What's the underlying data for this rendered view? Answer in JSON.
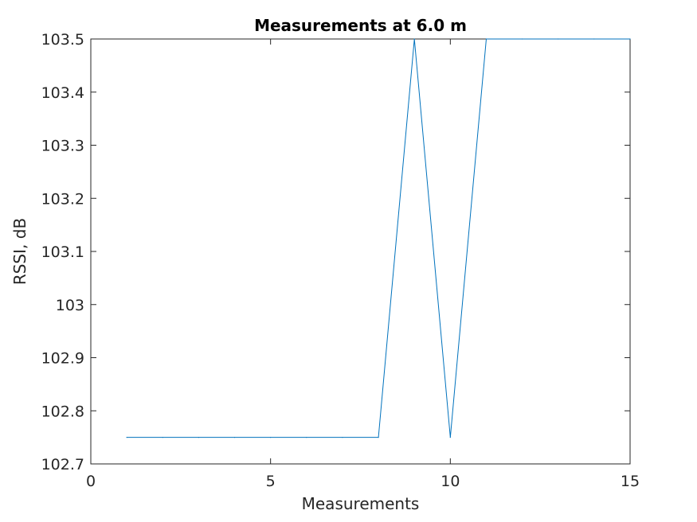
{
  "chart_data": {
    "type": "line",
    "title": "Measurements at 6.0 m",
    "xlabel": "Measurements",
    "ylabel": "RSSI, dB",
    "xlim": [
      0,
      15
    ],
    "ylim": [
      102.7,
      103.5
    ],
    "xticks": [
      "0",
      "5",
      "10",
      "15"
    ],
    "yticks": [
      "102.7",
      "102.8",
      "102.9",
      "103",
      "103.1",
      "103.2",
      "103.3",
      "103.4",
      "103.5"
    ],
    "grid": false,
    "series": [
      {
        "color": "#0072bd",
        "x": [
          1,
          2,
          3,
          4,
          5,
          6,
          7,
          8,
          9,
          10,
          11,
          12,
          13,
          14,
          15
        ],
        "y": [
          102.75,
          102.75,
          102.75,
          102.75,
          102.75,
          102.75,
          102.75,
          102.75,
          103.5,
          102.75,
          103.5,
          103.5,
          103.5,
          103.5,
          103.5
        ]
      }
    ]
  }
}
